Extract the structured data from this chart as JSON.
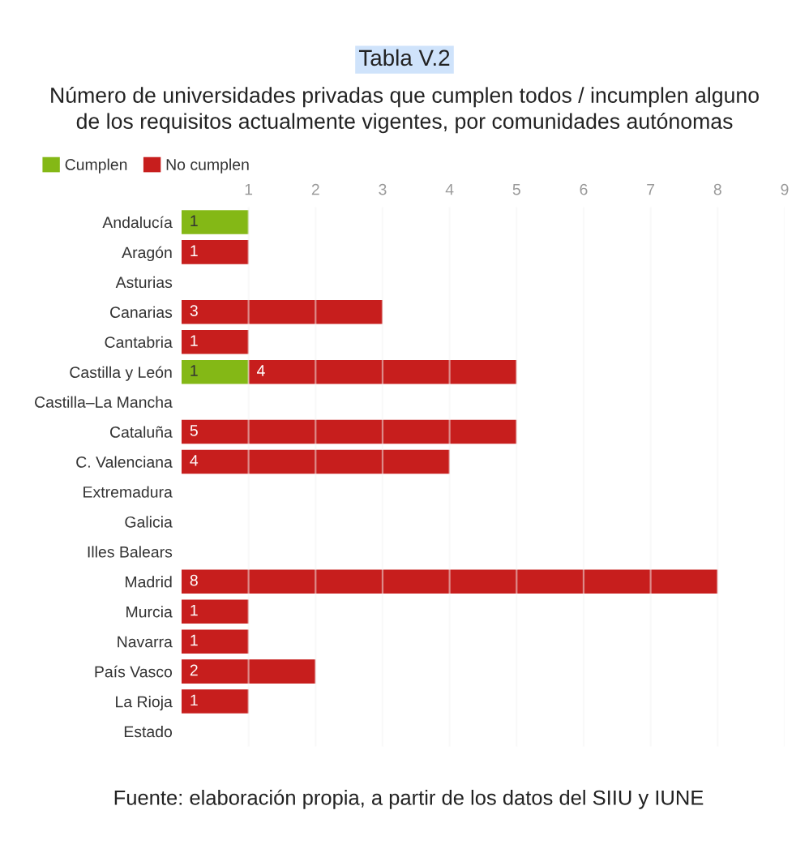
{
  "chart_data": {
    "type": "bar",
    "orientation": "horizontal",
    "stacked": true,
    "title": "Tabla V.2",
    "subtitle": "Número de universidades privadas que cumplen todos / incumplen alguno\nde los requisitos actualmente vigentes, por comunidades autónomas",
    "categories": [
      "Andalucía",
      "Aragón",
      "Asturias",
      "Canarias",
      "Cantabria",
      "Castilla y León",
      "Castilla–La Mancha",
      "Cataluña",
      "C. Valenciana",
      "Extremadura",
      "Galicia",
      "Illes Balears",
      "Madrid",
      "Murcia",
      "Navarra",
      "País Vasco",
      "La Rioja",
      "Estado"
    ],
    "series": [
      {
        "name": "Cumplen",
        "color": "#84b816",
        "values": [
          1,
          null,
          null,
          null,
          null,
          1,
          null,
          null,
          null,
          null,
          null,
          null,
          null,
          null,
          null,
          null,
          null,
          null
        ]
      },
      {
        "name": "No cumplen",
        "color": "#c71e1d",
        "values": [
          null,
          1,
          null,
          3,
          1,
          4,
          null,
          5,
          4,
          null,
          null,
          null,
          8,
          1,
          1,
          2,
          1,
          null
        ]
      }
    ],
    "xlim": [
      0,
      9
    ],
    "xticks": [
      1,
      2,
      3,
      4,
      5,
      6,
      7,
      8,
      9
    ],
    "grid": "x",
    "legend": "top left",
    "data_labels": true,
    "annotations": [
      "Fuente: elaboración propia, a partir de los datos del SIIU y IUNE"
    ]
  }
}
